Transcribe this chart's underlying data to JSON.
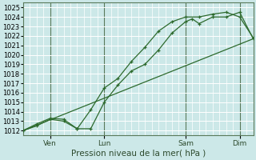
{
  "title": "Pression niveau de la mer( hPa )",
  "ylabel_ticks": [
    1012,
    1013,
    1014,
    1015,
    1016,
    1017,
    1018,
    1019,
    1020,
    1021,
    1022,
    1023,
    1024,
    1025
  ],
  "ylim": [
    1011.5,
    1025.5
  ],
  "xlim": [
    0,
    8.5
  ],
  "xtick_positions": [
    1,
    3,
    6,
    8
  ],
  "xtick_labels": [
    "Ven",
    "Lun",
    "Sam",
    "Dim"
  ],
  "bg_color": "#cce8e8",
  "grid_color": "#ffffff",
  "line_color": "#2d6a2d",
  "line1_x": [
    0,
    0.5,
    1.0,
    1.5,
    2.0,
    2.5,
    3.0,
    3.5,
    4.0,
    4.5,
    5.0,
    5.5,
    6.0,
    6.25,
    6.5,
    7.0,
    7.5,
    8.0,
    8.5
  ],
  "line1_y": [
    1012.0,
    1012.7,
    1013.3,
    1013.2,
    1012.2,
    1012.2,
    1015.0,
    1016.8,
    1018.3,
    1019.0,
    1020.5,
    1022.3,
    1023.5,
    1023.8,
    1023.3,
    1024.0,
    1024.0,
    1024.5,
    1021.7
  ],
  "line2_x": [
    0,
    0.5,
    1.0,
    1.5,
    2.0,
    2.5,
    3.0,
    3.5,
    4.0,
    4.5,
    5.0,
    5.5,
    6.0,
    6.5,
    7.0,
    7.5,
    8.0,
    8.5
  ],
  "line2_y": [
    1012.0,
    1012.5,
    1013.2,
    1013.0,
    1012.2,
    1014.2,
    1016.5,
    1017.5,
    1019.3,
    1020.8,
    1022.5,
    1023.5,
    1024.0,
    1024.0,
    1024.3,
    1024.5,
    1024.0,
    1021.8
  ],
  "line3_x": [
    0,
    8.5
  ],
  "line3_y": [
    1012.0,
    1021.7
  ],
  "vline_color": "#5a7a5a",
  "spine_color": "#5a7a5a"
}
